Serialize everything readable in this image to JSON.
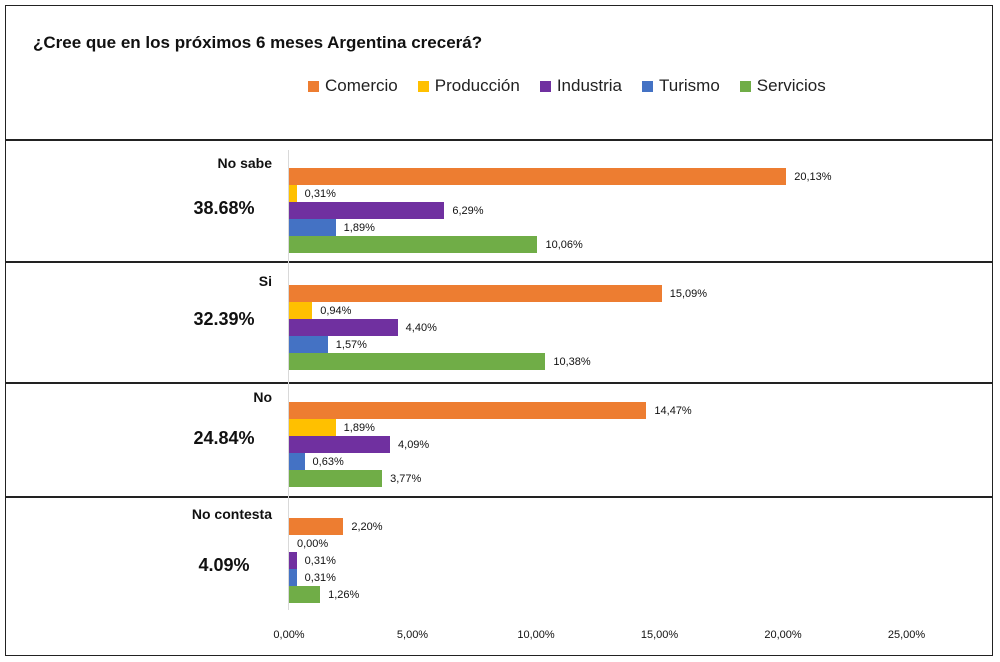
{
  "chart_data": {
    "type": "bar",
    "orientation": "horizontal",
    "title": "¿Cree que en los próximos 6 meses Argentina crecerá?",
    "series_names": [
      "Comercio",
      "Producción",
      "Industria",
      "Turismo",
      "Servicios"
    ],
    "colors": [
      "#ED7D31",
      "#FFC000",
      "#7030A0",
      "#4472C4",
      "#70AD47"
    ],
    "categories": [
      {
        "label": "No sabe",
        "total": "38.68%",
        "values": [
          20.13,
          0.31,
          6.29,
          1.89,
          10.06
        ],
        "value_labels": [
          "20,13%",
          "0,31%",
          "6,29%",
          "1,89%",
          "10,06%"
        ]
      },
      {
        "label": "Si",
        "total": "32.39%",
        "values": [
          15.09,
          0.94,
          4.4,
          1.57,
          10.38
        ],
        "value_labels": [
          "15,09%",
          "0,94%",
          "4,40%",
          "1,57%",
          "10,38%"
        ]
      },
      {
        "label": "No",
        "total": "24.84%",
        "values": [
          14.47,
          1.89,
          4.09,
          0.63,
          3.77
        ],
        "value_labels": [
          "14,47%",
          "1,89%",
          "4,09%",
          "0,63%",
          "3,77%"
        ]
      },
      {
        "label": "No contesta",
        "total": "4.09%",
        "values": [
          2.2,
          0.0,
          0.31,
          0.31,
          1.26
        ],
        "value_labels": [
          "2,20%",
          "0,00%",
          "0,31%",
          "0,31%",
          "1,26%"
        ]
      }
    ],
    "xlim": [
      0,
      25
    ],
    "x_ticks": [
      "0,00%",
      "5,00%",
      "10,00%",
      "15,00%",
      "20,00%",
      "25,00%"
    ],
    "legend": "top"
  }
}
